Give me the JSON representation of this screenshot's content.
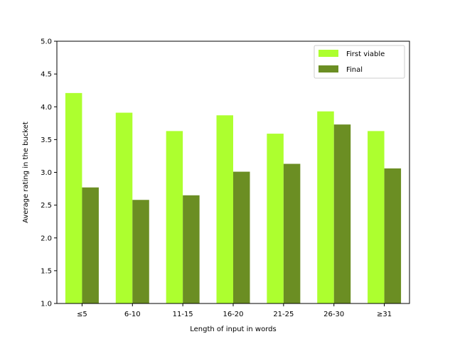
{
  "chart_data": {
    "type": "bar",
    "title": "",
    "xlabel": "Length of input in words",
    "ylabel": "Average rating in the bucket",
    "categories": [
      "≤5",
      "6-10",
      "11-15",
      "16-20",
      "21-25",
      "26-30",
      "≥31"
    ],
    "series": [
      {
        "name": "First viable",
        "color": "#adff2f",
        "values": [
          4.21,
          3.91,
          3.63,
          3.87,
          3.59,
          3.93,
          3.63
        ]
      },
      {
        "name": "Final",
        "color": "#6b8e23",
        "values": [
          2.77,
          2.58,
          2.65,
          3.01,
          3.13,
          3.73,
          3.06
        ]
      }
    ],
    "ylim": [
      1.0,
      5.0
    ],
    "yticks": [
      "1.0",
      "1.5",
      "2.0",
      "2.5",
      "3.0",
      "3.5",
      "4.0",
      "4.5",
      "5.0"
    ],
    "grid": false,
    "legend_position": "upper right"
  }
}
